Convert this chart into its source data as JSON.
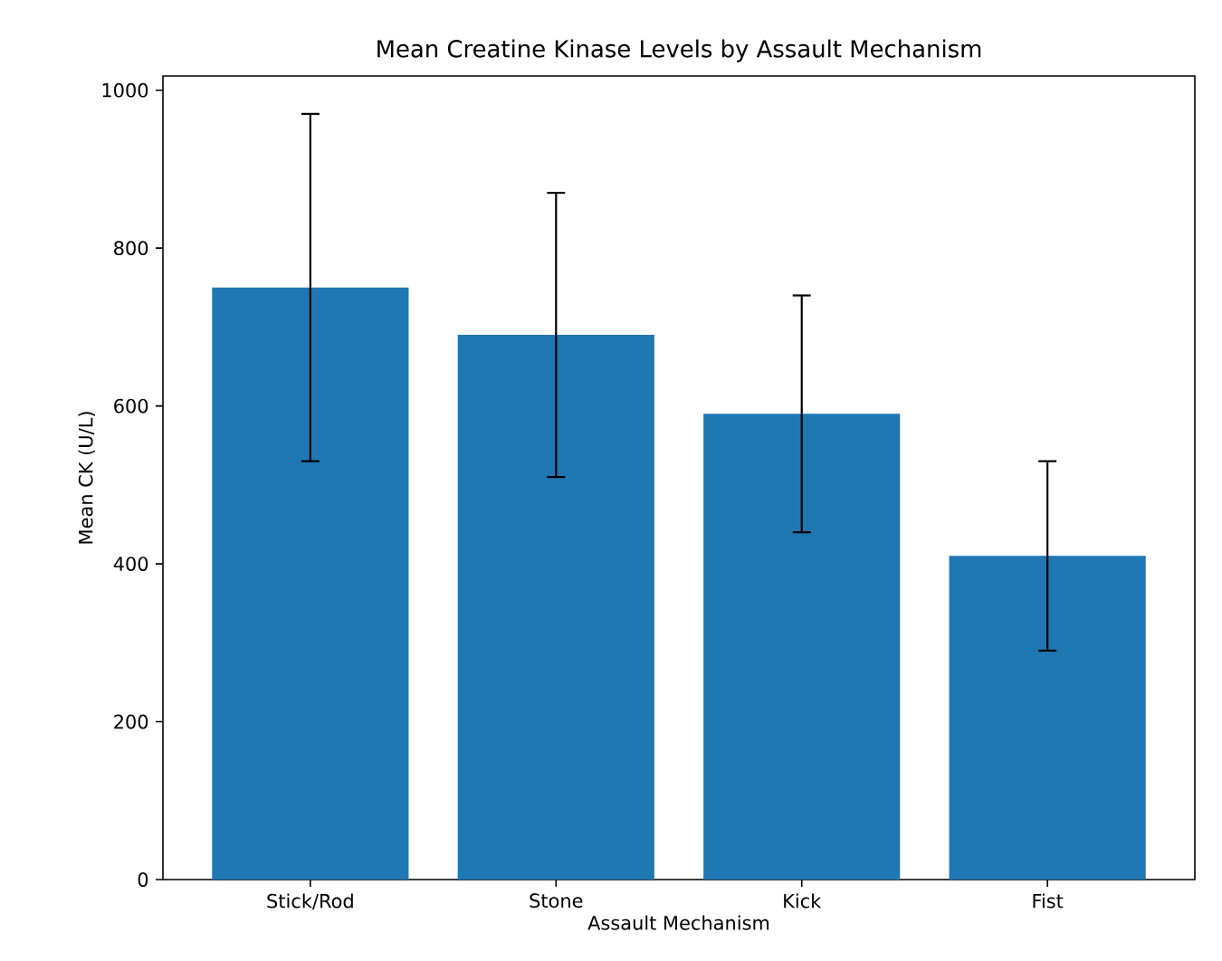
{
  "chart_data": {
    "type": "bar",
    "title": "Mean Creatine Kinase Levels by Assault Mechanism",
    "xlabel": "Assault Mechanism",
    "ylabel": "Mean CK (U/L)",
    "categories": [
      "Stick/Rod",
      "Stone",
      "Kick",
      "Fist"
    ],
    "values": [
      750,
      690,
      590,
      410
    ],
    "errors": [
      220,
      180,
      150,
      120
    ],
    "color": "#1f77b4",
    "ylim": [
      0,
      1018
    ],
    "yticks": [
      0,
      200,
      400,
      600,
      800,
      1000
    ]
  }
}
